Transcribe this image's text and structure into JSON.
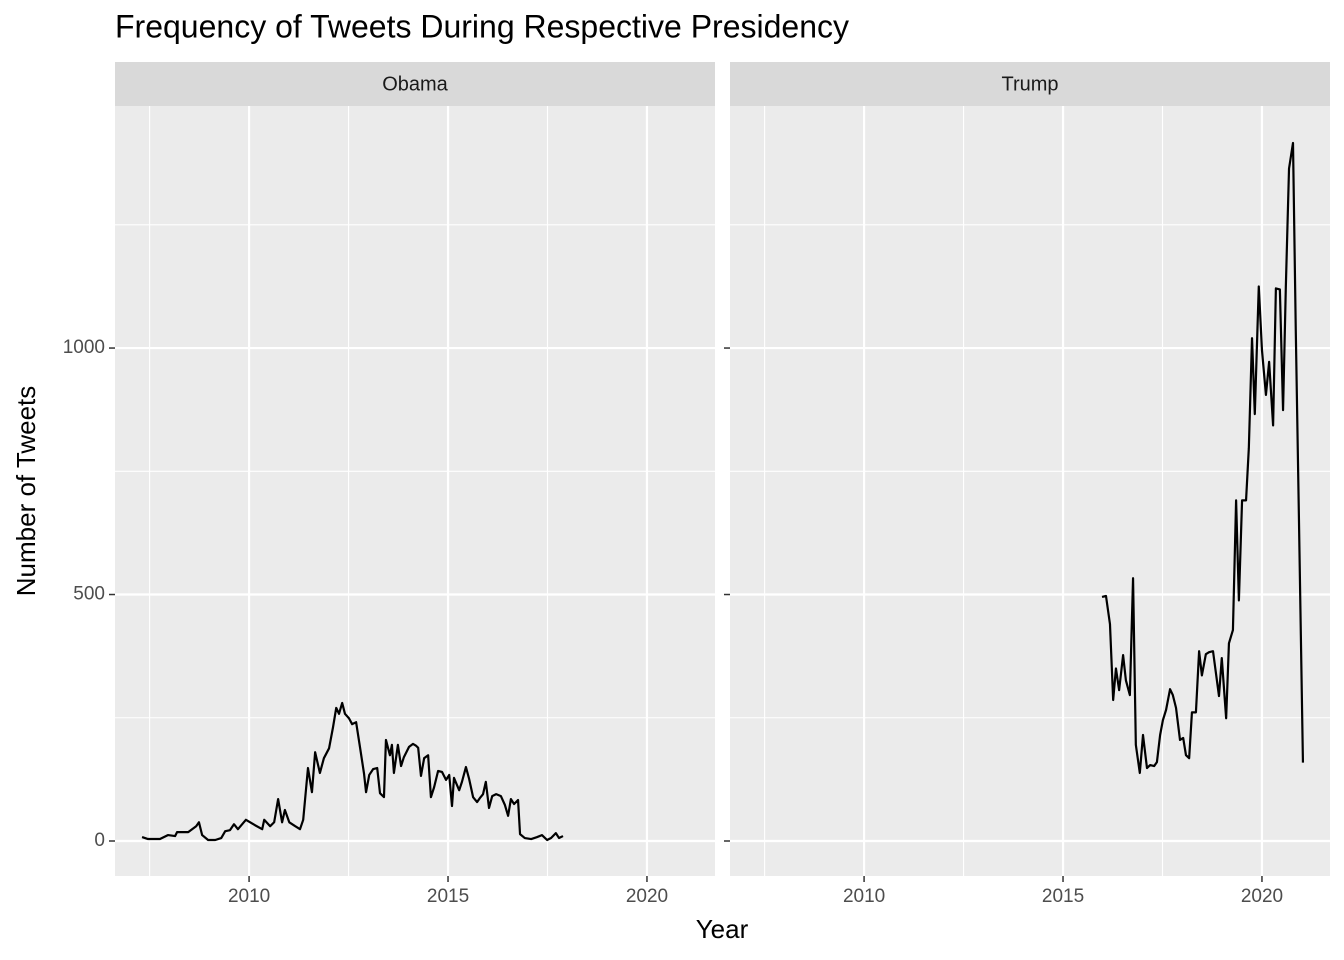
{
  "title": "Frequency of Tweets During Respective Presidency",
  "x_label": "Year",
  "y_label": "Number of Tweets",
  "chart_data": [
    {
      "type": "line",
      "facet": "Obama",
      "color": "#000000",
      "grid": true,
      "xlim": [
        2006.63,
        2021.71
      ],
      "ylim": [
        -71,
        1491
      ],
      "xticks": [
        2010,
        2015,
        2020
      ],
      "yticks": [
        0,
        500,
        1000
      ],
      "x_minor_grid": [
        2007.5,
        2012.5,
        2017.5
      ],
      "y_minor_grid": [
        250,
        750,
        1250
      ],
      "x": [
        2007.31,
        2007.46,
        2007.76,
        2007.96,
        2008.14,
        2008.19,
        2008.47,
        2008.67,
        2008.74,
        2008.82,
        2008.97,
        2009.15,
        2009.3,
        2009.4,
        2009.52,
        2009.62,
        2009.72,
        2009.92,
        2010.15,
        2010.33,
        2010.38,
        2010.53,
        2010.63,
        2010.73,
        2010.83,
        2010.9,
        2011.01,
        2011.16,
        2011.28,
        2011.36,
        2011.48,
        2011.58,
        2011.66,
        2011.78,
        2011.88,
        2012.01,
        2012.11,
        2012.19,
        2012.26,
        2012.34,
        2012.41,
        2012.51,
        2012.59,
        2012.69,
        2012.79,
        2012.89,
        2012.94,
        2013.02,
        2013.12,
        2013.22,
        2013.29,
        2013.39,
        2013.44,
        2013.54,
        2013.59,
        2013.64,
        2013.74,
        2013.82,
        2013.89,
        2014.02,
        2014.12,
        2014.2,
        2014.25,
        2014.32,
        2014.4,
        2014.5,
        2014.57,
        2014.65,
        2014.75,
        2014.85,
        2014.95,
        2015.03,
        2015.1,
        2015.15,
        2015.28,
        2015.35,
        2015.45,
        2015.53,
        2015.63,
        2015.73,
        2015.8,
        2015.88,
        2015.95,
        2016.03,
        2016.11,
        2016.21,
        2016.33,
        2016.43,
        2016.51,
        2016.58,
        2016.66,
        2016.76,
        2016.81,
        2016.93,
        2017.09,
        2017.24,
        2017.36,
        2017.49,
        2017.59,
        2017.71,
        2017.79,
        2017.89
      ],
      "values": [
        8,
        4,
        4,
        12,
        10,
        18,
        18,
        30,
        38,
        12,
        2,
        2,
        6,
        20,
        22,
        34,
        24,
        43,
        32,
        24,
        43,
        30,
        38,
        85,
        38,
        63,
        38,
        30,
        24,
        43,
        148,
        99,
        180,
        138,
        168,
        188,
        231,
        270,
        258,
        280,
        258,
        249,
        237,
        241,
        189,
        136,
        99,
        134,
        146,
        148,
        97,
        89,
        205,
        174,
        195,
        138,
        195,
        152,
        170,
        191,
        197,
        193,
        189,
        132,
        168,
        174,
        89,
        109,
        142,
        140,
        124,
        134,
        71,
        128,
        103,
        120,
        150,
        126,
        89,
        79,
        87,
        95,
        120,
        67,
        91,
        95,
        91,
        73,
        51,
        85,
        75,
        83,
        14,
        6,
        4,
        8,
        12,
        2,
        6,
        16,
        6,
        10
      ]
    },
    {
      "type": "line",
      "facet": "Trump",
      "color": "#000000",
      "grid": true,
      "xlim": [
        2006.63,
        2021.71
      ],
      "ylim": [
        -71,
        1491
      ],
      "xticks": [
        2010,
        2015,
        2020
      ],
      "yticks": [
        0,
        500,
        1000
      ],
      "x_minor_grid": [
        2007.5,
        2012.5,
        2017.5
      ],
      "y_minor_grid": [
        250,
        750,
        1250
      ],
      "x": [
        2015.98,
        2016.08,
        2016.18,
        2016.26,
        2016.33,
        2016.41,
        2016.51,
        2016.58,
        2016.68,
        2016.76,
        2016.83,
        2016.93,
        2017.01,
        2017.11,
        2017.19,
        2017.29,
        2017.36,
        2017.44,
        2017.51,
        2017.59,
        2017.69,
        2017.76,
        2017.84,
        2017.94,
        2018.02,
        2018.09,
        2018.17,
        2018.24,
        2018.34,
        2018.42,
        2018.49,
        2018.59,
        2018.67,
        2018.77,
        2018.92,
        2018.99,
        2019.1,
        2019.17,
        2019.27,
        2019.35,
        2019.42,
        2019.5,
        2019.6,
        2019.67,
        2019.75,
        2019.82,
        2019.92,
        2020.0,
        2020.1,
        2020.18,
        2020.28,
        2020.35,
        2020.45,
        2020.53,
        2020.6,
        2020.68,
        2020.78,
        2020.85,
        2020.93,
        2021.03
      ],
      "values": [
        495,
        497,
        440,
        286,
        350,
        306,
        377,
        326,
        296,
        533,
        195,
        138,
        215,
        148,
        154,
        152,
        160,
        215,
        245,
        266,
        308,
        296,
        270,
        205,
        209,
        174,
        168,
        261,
        261,
        385,
        336,
        379,
        383,
        385,
        294,
        371,
        249,
        401,
        428,
        691,
        488,
        691,
        691,
        797,
        1020,
        866,
        1125,
        996,
        905,
        972,
        843,
        1121,
        1119,
        874,
        1125,
        1364,
        1416,
        1035,
        650,
        159
      ]
    }
  ]
}
